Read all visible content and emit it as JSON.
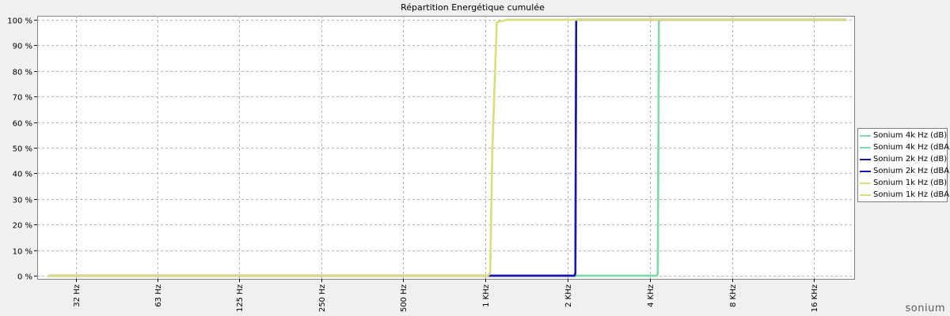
{
  "logo": {
    "text": "sonium"
  },
  "chart_data": {
    "type": "line",
    "title": "Répartition Energétique cumulée",
    "xlabel": "",
    "ylabel": "",
    "x_scale": "log",
    "xlim": [
      22.5,
      24000
    ],
    "ylim": [
      0,
      100
    ],
    "grid": true,
    "legend_position": "right",
    "x_ticks": [
      {
        "value": 31.5,
        "label": "32 Hz"
      },
      {
        "value": 63,
        "label": "63 Hz"
      },
      {
        "value": 125,
        "label": "125 Hz"
      },
      {
        "value": 250,
        "label": "250 Hz"
      },
      {
        "value": 500,
        "label": "500 Hz"
      },
      {
        "value": 1000,
        "label": "1 KHz"
      },
      {
        "value": 2000,
        "label": "2 KHz"
      },
      {
        "value": 4000,
        "label": "4 KHz"
      },
      {
        "value": 8000,
        "label": "8 KHz"
      },
      {
        "value": 16000,
        "label": "16 KHz"
      }
    ],
    "y_ticks": [
      {
        "value": 0,
        "label": "0 %"
      },
      {
        "value": 10,
        "label": "10 %"
      },
      {
        "value": 20,
        "label": "20 %"
      },
      {
        "value": 30,
        "label": "30 %"
      },
      {
        "value": 40,
        "label": "40 %"
      },
      {
        "value": 50,
        "label": "50 %"
      },
      {
        "value": 60,
        "label": "60 %"
      },
      {
        "value": 70,
        "label": "70 %"
      },
      {
        "value": 80,
        "label": "80 %"
      },
      {
        "value": 90,
        "label": "90 %"
      },
      {
        "value": 100,
        "label": "100 %"
      }
    ],
    "series": [
      {
        "name": "Sonium 4k Hz (dB)",
        "color": "#7fd9a8",
        "x": [
          25,
          4250,
          4280,
          4320,
          4350,
          21000
        ],
        "y": [
          0,
          0,
          1,
          99,
          100,
          100
        ]
      },
      {
        "name": "Sonium 4k Hz (dBA)",
        "color": "#7fd9a8",
        "x": [
          25,
          4250,
          4280,
          4320,
          4350,
          21000
        ],
        "y": [
          0,
          0,
          1,
          99,
          100,
          100
        ]
      },
      {
        "name": "Sonium 2k Hz (dB)",
        "color": "#1515b0",
        "x": [
          25,
          2120,
          2135,
          2150,
          21000
        ],
        "y": [
          0,
          0,
          1,
          100,
          100
        ]
      },
      {
        "name": "Sonium 2k Hz (dBA)",
        "color": "#1515b0",
        "x": [
          25,
          2120,
          2135,
          2150,
          21000
        ],
        "y": [
          0,
          0,
          1,
          100,
          100
        ]
      },
      {
        "name": "Sonium 1k Hz (dB)",
        "color": "#dcdc7a",
        "x": [
          25,
          1020,
          1040,
          1060,
          1100,
          1200,
          21000
        ],
        "y": [
          0,
          0,
          1,
          50,
          99,
          100,
          100
        ]
      },
      {
        "name": "Sonium 1k Hz (dBA)",
        "color": "#dcdc7a",
        "x": [
          25,
          1020,
          1040,
          1060,
          1100,
          1200,
          21000
        ],
        "y": [
          0,
          0,
          1,
          50,
          99,
          100,
          100
        ]
      }
    ]
  }
}
